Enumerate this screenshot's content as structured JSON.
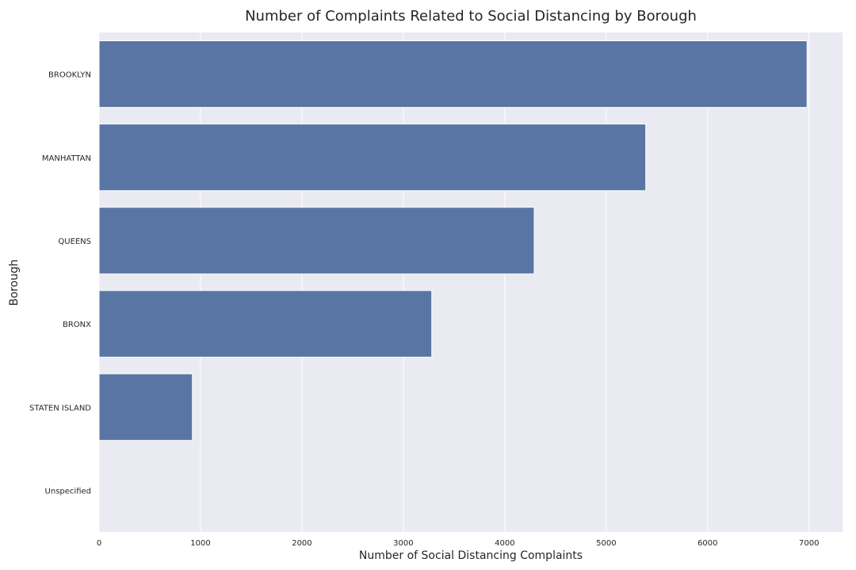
{
  "chart_data": {
    "type": "bar",
    "orientation": "horizontal",
    "title": "Number of Complaints Related to Social Distancing by Borough",
    "xlabel": "Number of Social Distancing Complaints",
    "ylabel": "Borough",
    "categories": [
      "BROOKLYN",
      "MANHATTAN",
      "QUEENS",
      "BRONX",
      "STATEN ISLAND",
      "Unspecified"
    ],
    "values": [
      6980,
      5390,
      4290,
      3280,
      920,
      0
    ],
    "xlim": [
      0,
      7330
    ],
    "x_ticks": [
      "0",
      "1000",
      "2000",
      "3000",
      "4000",
      "5000",
      "6000",
      "7000"
    ],
    "grid": true,
    "legend": "none",
    "colors": {
      "bar": "#5975a4",
      "background": "#eaeaf2",
      "grid": "#ffffff",
      "text": "#262626"
    }
  }
}
